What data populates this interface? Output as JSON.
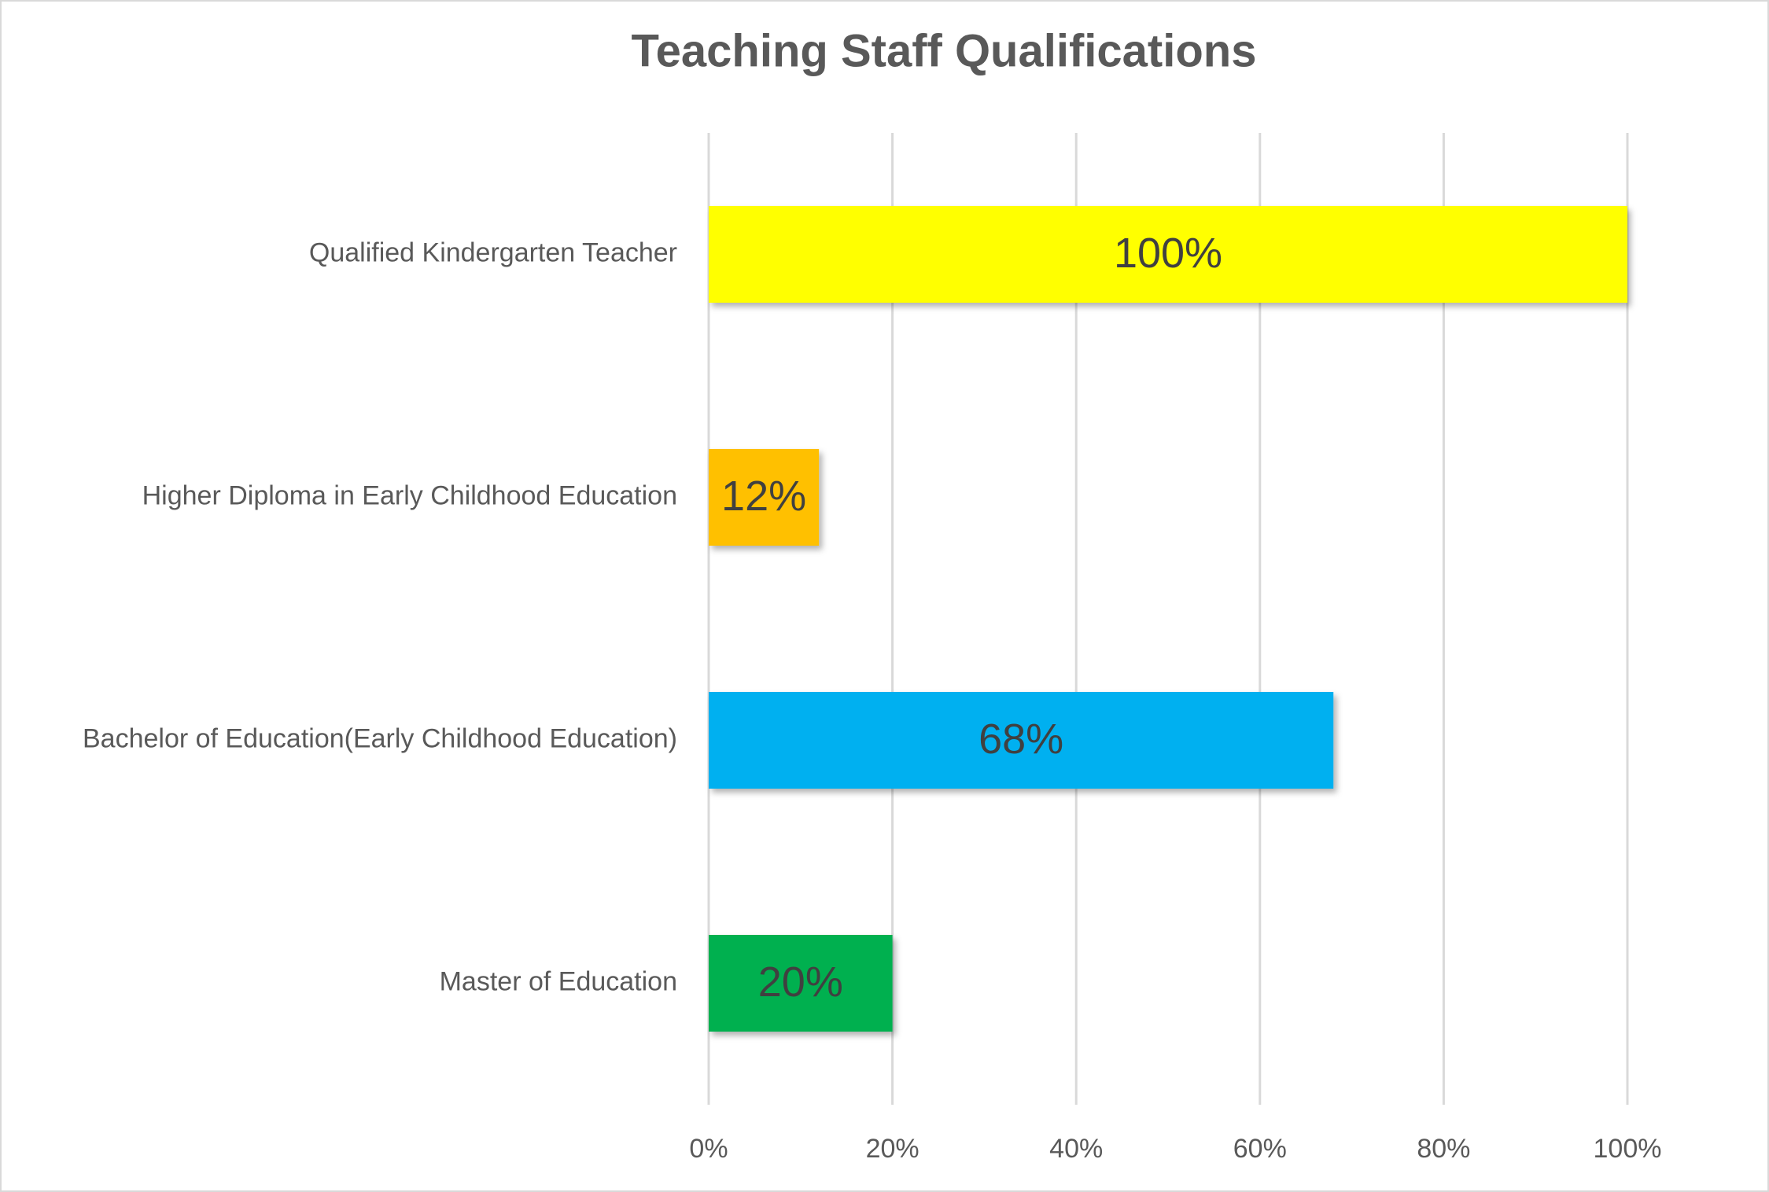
{
  "chart_data": {
    "type": "hbar",
    "title": "Teaching Staff Qualifications",
    "categories": [
      "Qualified Kindergarten Teacher",
      "Higher Diploma in Early Childhood Education",
      "Bachelor of Education(Early Childhood Education)",
      "Master of Education"
    ],
    "values": [
      100,
      12,
      68,
      20
    ],
    "value_labels": [
      "100%",
      "12%",
      "68%",
      "20%"
    ],
    "colors": [
      "#ffff00",
      "#ffc000",
      "#00b0f0",
      "#00b050"
    ],
    "xlim": [
      0,
      100
    ],
    "xticks": [
      {
        "value": 0,
        "label": "0%"
      },
      {
        "value": 20,
        "label": "20%"
      },
      {
        "value": 40,
        "label": "40%"
      },
      {
        "value": 60,
        "label": "60%"
      },
      {
        "value": 80,
        "label": "80%"
      },
      {
        "value": 100,
        "label": "100%"
      }
    ],
    "grid": true
  }
}
